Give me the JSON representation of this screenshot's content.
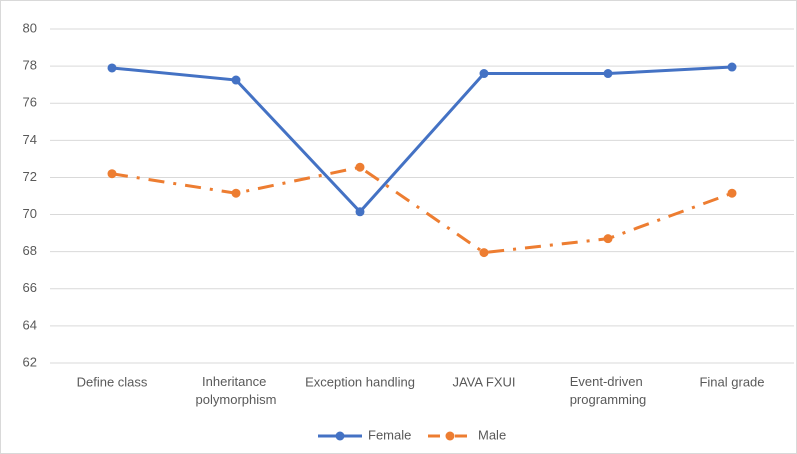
{
  "chart_data": {
    "type": "line",
    "categories": [
      "Define class",
      "Inheritance polymorphism",
      "Exception handling",
      "JAVA FXUI",
      "Event-driven programming",
      "Final grade"
    ],
    "series": [
      {
        "name": "Female",
        "color": "#4472c4",
        "values": [
          77.9,
          77.25,
          70.15,
          77.6,
          77.6,
          77.95
        ]
      },
      {
        "name": "Male",
        "color": "#ed7d31",
        "values": [
          72.2,
          71.15,
          72.55,
          67.95,
          68.7,
          71.15
        ]
      }
    ],
    "ylim": [
      62,
      80
    ],
    "yticks": [
      62,
      64,
      66,
      68,
      70,
      72,
      74,
      76,
      78,
      80
    ],
    "grid": true,
    "legend": "bottom"
  }
}
